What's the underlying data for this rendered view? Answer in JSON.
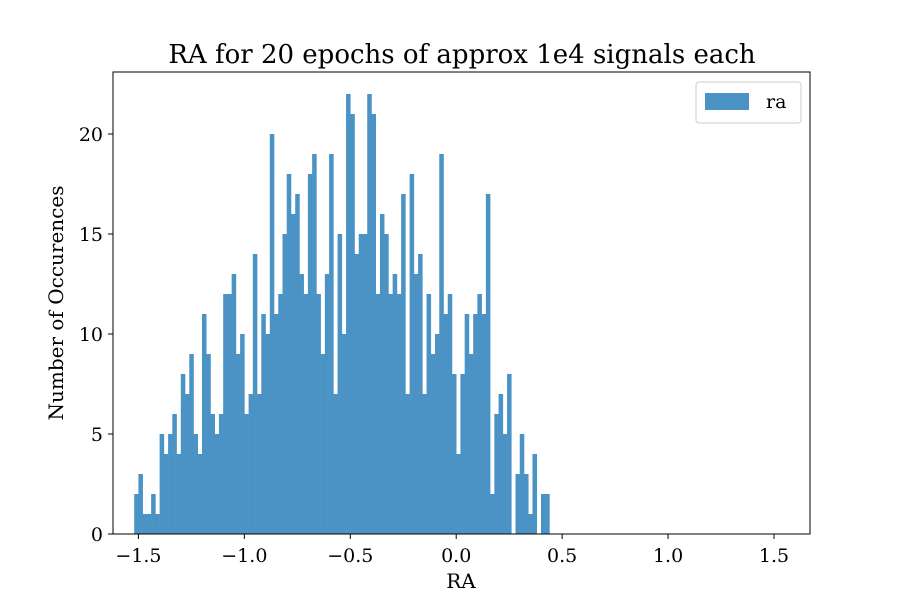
{
  "chart_data": {
    "type": "bar",
    "title": "RA for 20 epochs of approx 1e4 signals each",
    "xlabel": "RA",
    "ylabel": "Number of Occurences",
    "xlim": [
      -1.62,
      1.67
    ],
    "ylim": [
      0,
      23.1
    ],
    "bin_start": -1.52,
    "bin_width": 0.02,
    "xticks": [
      -1.5,
      -1.0,
      -0.5,
      0.0,
      0.5,
      1.0,
      1.5
    ],
    "xtick_labels": [
      "−1.5",
      "−1.0",
      "−0.5",
      "0.0",
      "0.5",
      "1.0",
      "1.5"
    ],
    "yticks": [
      0,
      5,
      10,
      15,
      20
    ],
    "yticks_labels": [
      "0",
      "5",
      "10",
      "15",
      "20"
    ],
    "series": [
      {
        "name": "ra",
        "color": "#4c93c5",
        "values": [
          2,
          3,
          1,
          1,
          2,
          1,
          5,
          4,
          5,
          6,
          4,
          8,
          7,
          9,
          5,
          4,
          11,
          9,
          6,
          5,
          6,
          12,
          12,
          13,
          9,
          10,
          6,
          7,
          14,
          7,
          11,
          10,
          20,
          11,
          12,
          15,
          18,
          16,
          17,
          13,
          12,
          18,
          19,
          12,
          9,
          13,
          19,
          7,
          15,
          10,
          22,
          21,
          14,
          15,
          15,
          22,
          21,
          12,
          16,
          15,
          12,
          13,
          12,
          17,
          7,
          18,
          13,
          14,
          7,
          12,
          9,
          10,
          19,
          11,
          12,
          8,
          4,
          8,
          11,
          9,
          11,
          12,
          11,
          17,
          2,
          6,
          7,
          5,
          8,
          0,
          3,
          5,
          3,
          1,
          4,
          0,
          2,
          2
        ]
      }
    ],
    "legend": {
      "position": "top-right",
      "entries": [
        "ra"
      ]
    },
    "grid": false
  }
}
